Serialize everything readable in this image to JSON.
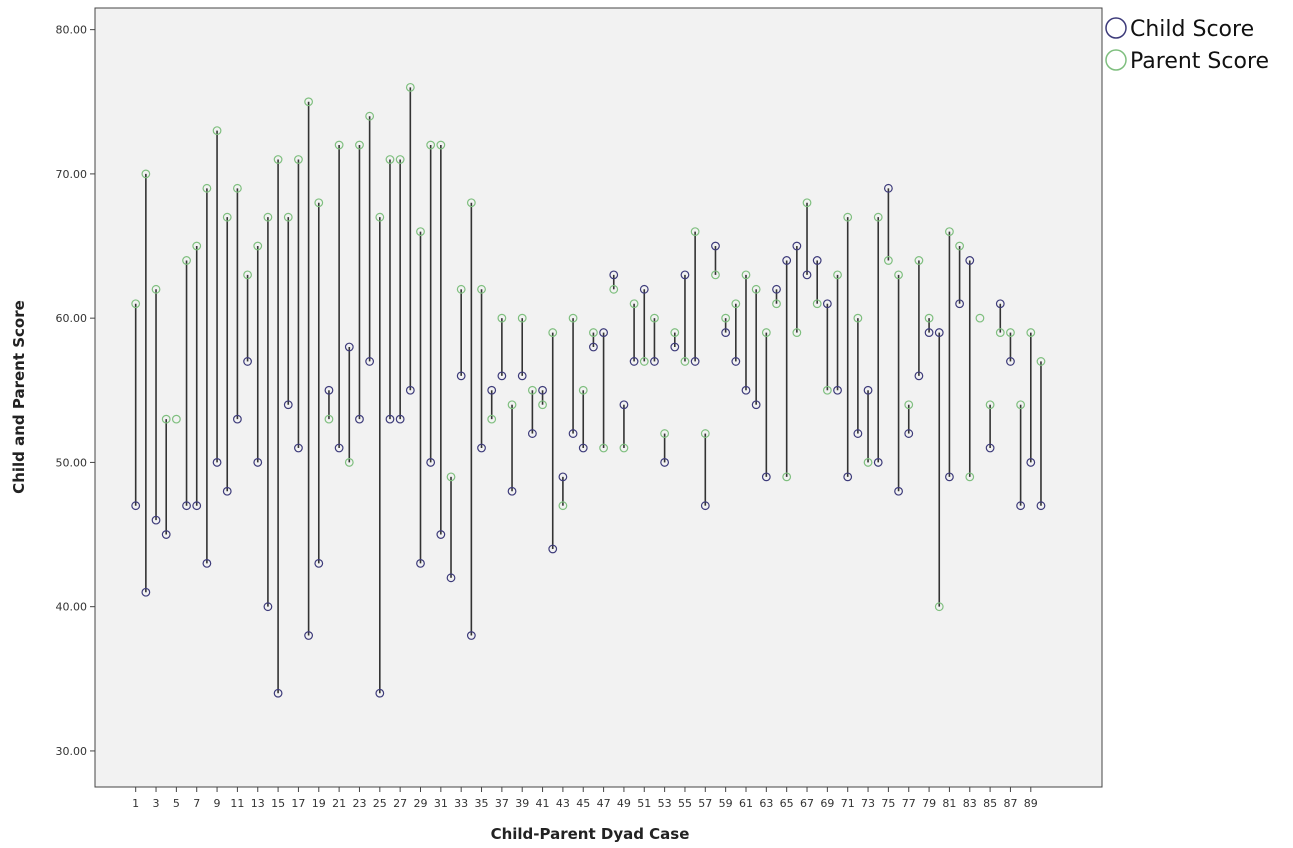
{
  "chart_data": {
    "type": "scatter",
    "subtype": "dumbbell",
    "xlabel": "Child-Parent Dyad Case",
    "ylabel": "Child and Parent Score",
    "ylim": [
      27.5,
      81.5
    ],
    "xlim": [
      -3,
      96
    ],
    "yticks": [
      30,
      40,
      50,
      60,
      70,
      80
    ],
    "ytick_labels": [
      "30.00",
      "40.00",
      "50.00",
      "60.00",
      "70.00",
      "80.00"
    ],
    "xticks": [
      1,
      3,
      5,
      7,
      9,
      11,
      13,
      15,
      17,
      19,
      21,
      23,
      25,
      27,
      29,
      31,
      33,
      35,
      37,
      39,
      41,
      43,
      45,
      47,
      49,
      51,
      53,
      55,
      57,
      59,
      61,
      63,
      65,
      67,
      69,
      71,
      73,
      75,
      77,
      79,
      81,
      83,
      85,
      87,
      89
    ],
    "grid": false,
    "legend_position": "top-right",
    "series": [
      {
        "name": "Child Score",
        "color": "#3d3b7a",
        "values": [
          47,
          41,
          46,
          45,
          null,
          47,
          47,
          43,
          50,
          48,
          53,
          57,
          50,
          40,
          34,
          54,
          51,
          38,
          43,
          55,
          51,
          58,
          53,
          57,
          34,
          53,
          53,
          55,
          43,
          50,
          45,
          42,
          56,
          38,
          51,
          55,
          56,
          48,
          56,
          52,
          55,
          44,
          49,
          52,
          51,
          58,
          59,
          63,
          54,
          57,
          62,
          57,
          50,
          58,
          63,
          57,
          47,
          65,
          59,
          57,
          55,
          54,
          49,
          62,
          64,
          65,
          63,
          64,
          61,
          55,
          49,
          52,
          55,
          50,
          69,
          48,
          52,
          56,
          59,
          59,
          49,
          61,
          64,
          null,
          51,
          61,
          57,
          47,
          50,
          47
        ]
      },
      {
        "name": "Parent Score",
        "color": "#7fbf7f",
        "values": [
          61,
          70,
          62,
          53,
          53,
          64,
          65,
          69,
          73,
          67,
          69,
          63,
          65,
          67,
          71,
          67,
          71,
          75,
          68,
          53,
          72,
          50,
          72,
          74,
          67,
          71,
          71,
          76,
          66,
          72,
          72,
          49,
          62,
          68,
          62,
          53,
          60,
          54,
          60,
          55,
          54,
          59,
          47,
          60,
          55,
          59,
          51,
          62,
          51,
          61,
          57,
          60,
          52,
          59,
          57,
          66,
          52,
          63,
          60,
          61,
          63,
          62,
          59,
          61,
          49,
          59,
          68,
          61,
          55,
          63,
          67,
          60,
          50,
          67,
          64,
          63,
          54,
          64,
          60,
          40,
          66,
          65,
          49,
          60,
          54,
          59,
          59,
          54,
          59,
          57
        ]
      }
    ]
  }
}
